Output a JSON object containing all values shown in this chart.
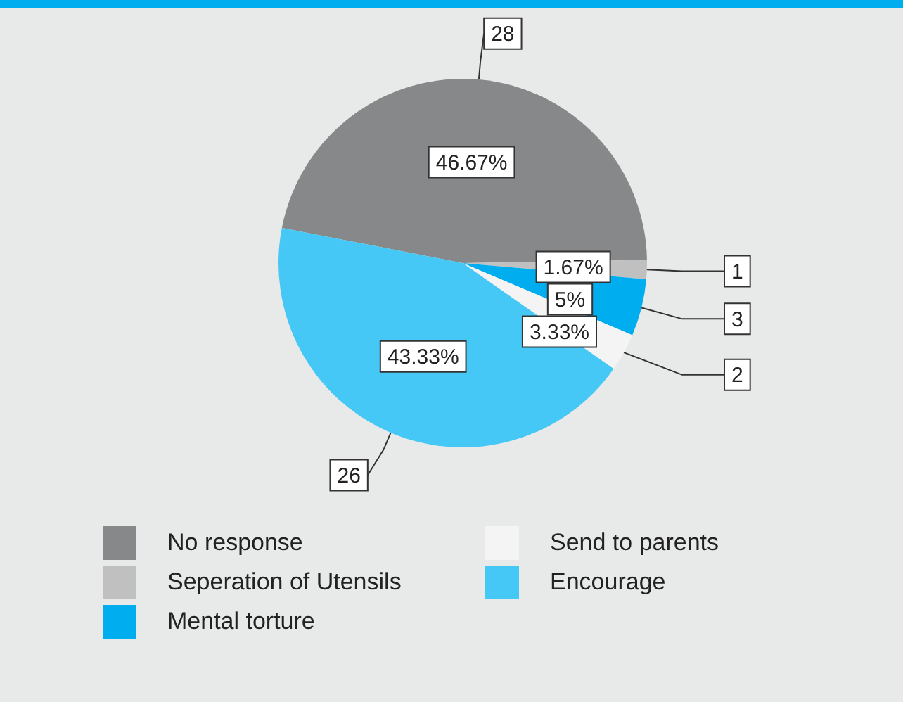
{
  "chart_data": {
    "type": "pie",
    "categories": [
      "No response",
      "Seperation of Utensils",
      "Mental torture",
      "Send to parents",
      "Encourage"
    ],
    "values": [
      46.67,
      1.67,
      5,
      3.33,
      43.33
    ],
    "colors": [
      "#87888a",
      "#c0c0c0",
      "#00aeef",
      "#f4f4f4",
      "#45c8f5"
    ],
    "value_labels": [
      "46.67%",
      "1.67%",
      "5%",
      "3.33%",
      "43.33%"
    ],
    "annotations": [
      "28",
      "1",
      "3",
      "2",
      "26"
    ],
    "legend": "bottom"
  }
}
